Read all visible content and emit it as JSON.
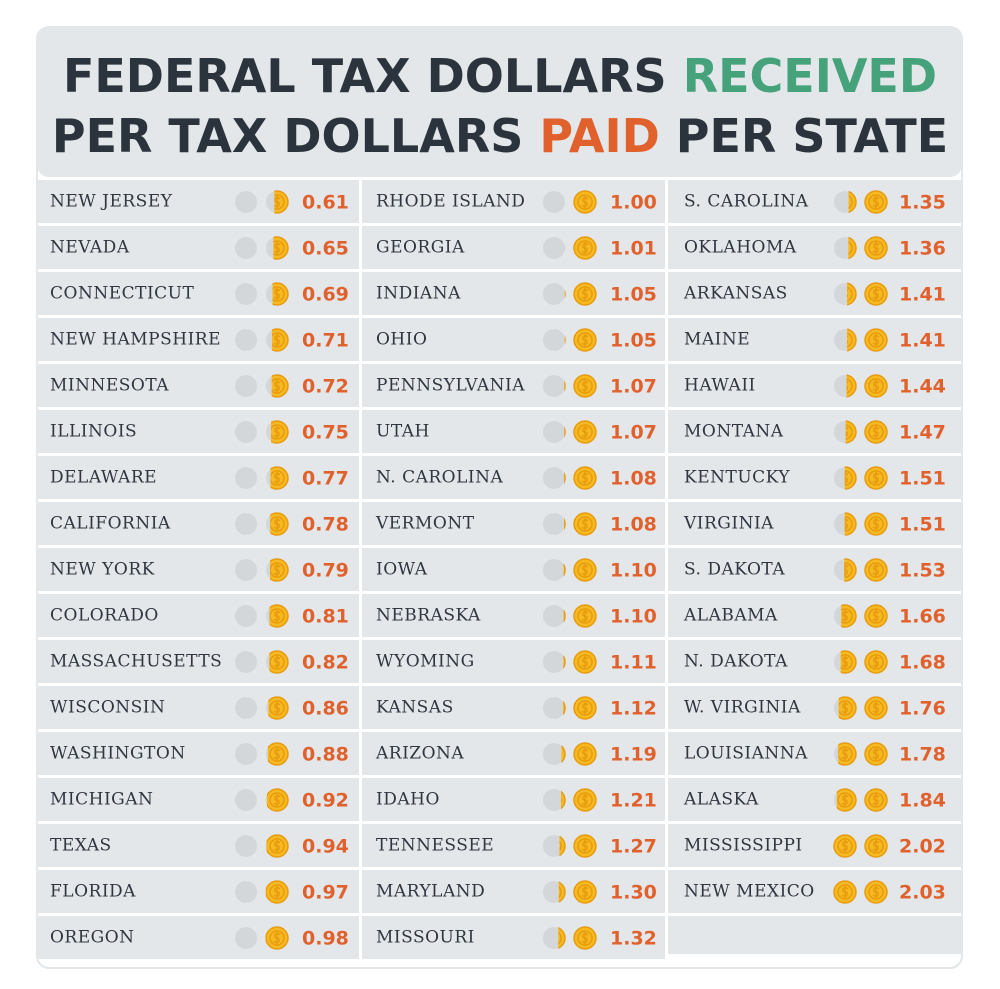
{
  "title": {
    "line1": [
      "FEDERAL TAX DOLLARS",
      "RECEIVED"
    ],
    "line2": [
      "PER TAX DOLLARS",
      "PAID",
      "PER STATE"
    ]
  },
  "table": {
    "columns": [
      [
        [
          "NEW JERSEY",
          "0.61"
        ],
        [
          "NEVADA",
          "0.65"
        ],
        [
          "CONNECTICUT",
          "0.69"
        ],
        [
          "NEW HAMPSHIRE",
          "0.71"
        ],
        [
          "MINNESOTA",
          "0.72"
        ],
        [
          "ILLINOIS",
          "0.75"
        ],
        [
          "DELAWARE",
          "0.77"
        ],
        [
          "CALIFORNIA",
          "0.78"
        ],
        [
          "NEW YORK",
          "0.79"
        ],
        [
          "COLORADO",
          "0.81"
        ],
        [
          "MASSACHUSETTS",
          "0.82"
        ],
        [
          "WISCONSIN",
          "0.86"
        ],
        [
          "WASHINGTON",
          "0.88"
        ],
        [
          "MICHIGAN",
          "0.92"
        ],
        [
          "TEXAS",
          "0.94"
        ],
        [
          "FLORIDA",
          "0.97"
        ],
        [
          "OREGON",
          "0.98"
        ]
      ],
      [
        [
          "RHODE ISLAND",
          "1.00"
        ],
        [
          "GEORGIA",
          "1.01"
        ],
        [
          "INDIANA",
          "1.05"
        ],
        [
          "OHIO",
          "1.05"
        ],
        [
          "PENNSYLVANIA",
          "1.07"
        ],
        [
          "UTAH",
          "1.07"
        ],
        [
          "N. CAROLINA",
          "1.08"
        ],
        [
          "VERMONT",
          "1.08"
        ],
        [
          "IOWA",
          "1.10"
        ],
        [
          "NEBRASKA",
          "1.10"
        ],
        [
          "WYOMING",
          "1.11"
        ],
        [
          "KANSAS",
          "1.12"
        ],
        [
          "ARIZONA",
          "1.19"
        ],
        [
          "IDAHO",
          "1.21"
        ],
        [
          "TENNESSEE",
          "1.27"
        ],
        [
          "MARYLAND",
          "1.30"
        ],
        [
          "MISSOURI",
          "1.32"
        ]
      ],
      [
        [
          "S. CAROLINA",
          "1.35"
        ],
        [
          "OKLAHOMA",
          "1.36"
        ],
        [
          "ARKANSAS",
          "1.41"
        ],
        [
          "MAINE",
          "1.41"
        ],
        [
          "HAWAII",
          "1.44"
        ],
        [
          "MONTANA",
          "1.47"
        ],
        [
          "KENTUCKY",
          "1.51"
        ],
        [
          "VIRGINIA",
          "1.51"
        ],
        [
          "S. DAKOTA",
          "1.53"
        ],
        [
          "ALABAMA",
          "1.66"
        ],
        [
          "N. DAKOTA",
          "1.68"
        ],
        [
          "W. VIRGINIA",
          "1.76"
        ],
        [
          "LOUISIANNA",
          "1.78"
        ],
        [
          "ALASKA",
          "1.84"
        ],
        [
          "MISSISSIPPI",
          "2.02"
        ],
        [
          "NEW MEXICO",
          "2.03"
        ]
      ]
    ]
  }
}
